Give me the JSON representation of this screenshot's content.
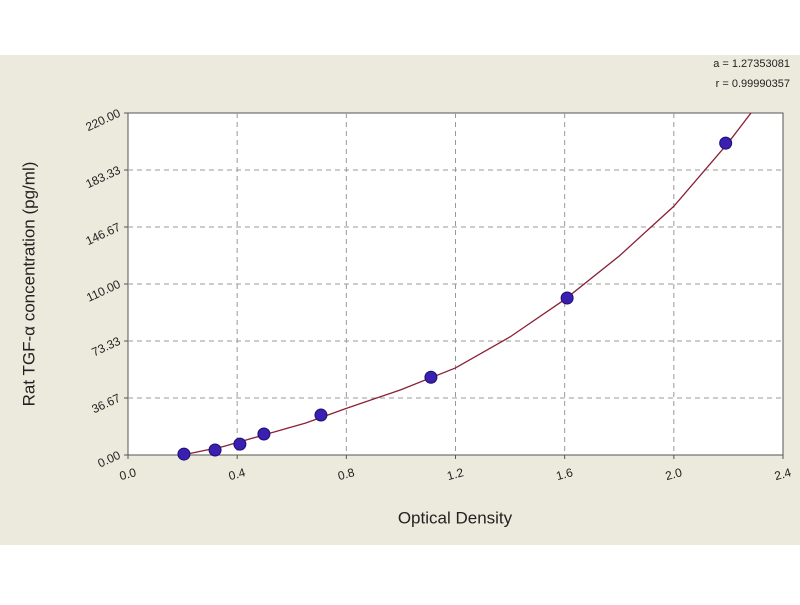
{
  "chart_data": {
    "type": "scatter",
    "annotations": [
      "a = 1.27353081",
      "r = 0.99990357"
    ],
    "xlabel": "Optical Density",
    "ylabel": "Rat TGF-α concentration (pg/ml)",
    "xlim": [
      0,
      2.4
    ],
    "ylim": [
      0,
      220
    ],
    "xticks": [
      {
        "value": 0,
        "label": "0.0"
      },
      0.4,
      0.8,
      1.2,
      1.6,
      {
        "value": 2,
        "label": "2.0"
      },
      2.4
    ],
    "yticks": [
      {
        "value": 0,
        "label": "0.00"
      },
      {
        "value": 36.67,
        "label": "36.67"
      },
      {
        "value": 73.33,
        "label": "73.33"
      },
      {
        "value": 110,
        "label": "110.00"
      },
      {
        "value": 146.67,
        "label": "146.67"
      },
      {
        "value": 183.33,
        "label": "183.33"
      },
      {
        "value": 220,
        "label": "220.00"
      }
    ],
    "grid": true,
    "series": [
      {
        "color": "#3a1fb0",
        "x": [
          0.205,
          0.319,
          0.41,
          0.498,
          0.707,
          1.11,
          1.609,
          2.19
        ],
        "values": [
          0.6,
          3.2,
          7,
          13.5,
          25.7,
          50,
          101,
          200.6
        ]
      },
      {
        "color": "#8b2035",
        "x": [
          0.2,
          0.35,
          0.5,
          0.65,
          0.8,
          1.0,
          1.2,
          1.4,
          1.6,
          1.8,
          2.0,
          2.2,
          2.3
        ],
        "values": [
          0,
          5.5,
          13,
          20.5,
          30,
          42,
          56,
          76,
          100,
          128,
          160,
          201,
          224
        ]
      }
    ]
  }
}
